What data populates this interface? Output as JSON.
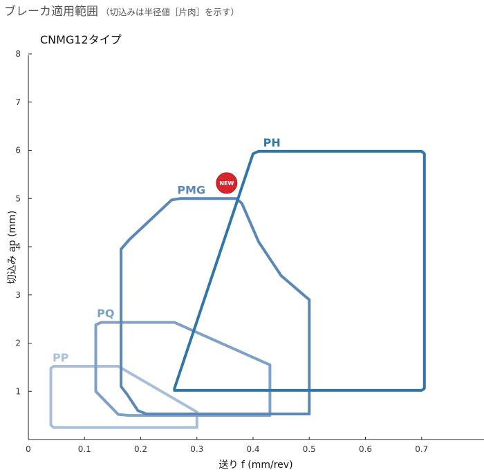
{
  "header": {
    "title": "ブレーカ適用範囲",
    "subtitle": "（切込みは半径値［片肉］を示す）"
  },
  "chart_data": {
    "type": "area",
    "title": "CNMG12タイプ",
    "xlabel": "送り f (mm/rev)",
    "ylabel": "切込み ap (mm)",
    "xlim": [
      0,
      0.8
    ],
    "ylim": [
      0,
      8
    ],
    "x_ticks": [
      "0",
      "0.1",
      "0.2",
      "0.3",
      "0.4",
      "0.5",
      "0.6",
      "0.7"
    ],
    "y_ticks": [
      "1",
      "2",
      "3",
      "4",
      "5",
      "6",
      "7",
      "8"
    ],
    "grid": false,
    "badge": "NEW",
    "series": [
      {
        "name": "PP",
        "color": "#a9bfd9",
        "points": [
          [
            0.04,
            1.48
          ],
          [
            0.045,
            1.52
          ],
          [
            0.16,
            1.52
          ],
          [
            0.3,
            0.57
          ],
          [
            0.3,
            0.25
          ],
          [
            0.045,
            0.25
          ],
          [
            0.04,
            0.3
          ]
        ]
      },
      {
        "name": "PQ",
        "color": "#7fa1c7",
        "points": [
          [
            0.12,
            1.0
          ],
          [
            0.12,
            2.38
          ],
          [
            0.13,
            2.43
          ],
          [
            0.26,
            2.43
          ],
          [
            0.42,
            1.6
          ],
          [
            0.43,
            1.55
          ],
          [
            0.43,
            0.5
          ],
          [
            0.18,
            0.5
          ],
          [
            0.16,
            0.52
          ]
        ]
      },
      {
        "name": "PMG",
        "color": "#5b86b8",
        "points": [
          [
            0.165,
            1.1
          ],
          [
            0.165,
            3.95
          ],
          [
            0.18,
            4.15
          ],
          [
            0.255,
            4.97
          ],
          [
            0.27,
            5.0
          ],
          [
            0.37,
            5.0
          ],
          [
            0.38,
            4.9
          ],
          [
            0.41,
            4.1
          ],
          [
            0.45,
            3.4
          ],
          [
            0.49,
            3.0
          ],
          [
            0.5,
            2.9
          ],
          [
            0.5,
            0.53
          ],
          [
            0.21,
            0.53
          ],
          [
            0.195,
            0.6
          ],
          [
            0.175,
            0.95
          ]
        ]
      },
      {
        "name": "PH",
        "color": "#2e77a8",
        "points": [
          [
            0.26,
            1.02
          ],
          [
            0.26,
            1.06
          ],
          [
            0.4,
            5.93
          ],
          [
            0.41,
            5.98
          ],
          [
            0.7,
            5.98
          ],
          [
            0.705,
            5.93
          ],
          [
            0.705,
            1.06
          ],
          [
            0.7,
            1.02
          ]
        ]
      }
    ]
  }
}
